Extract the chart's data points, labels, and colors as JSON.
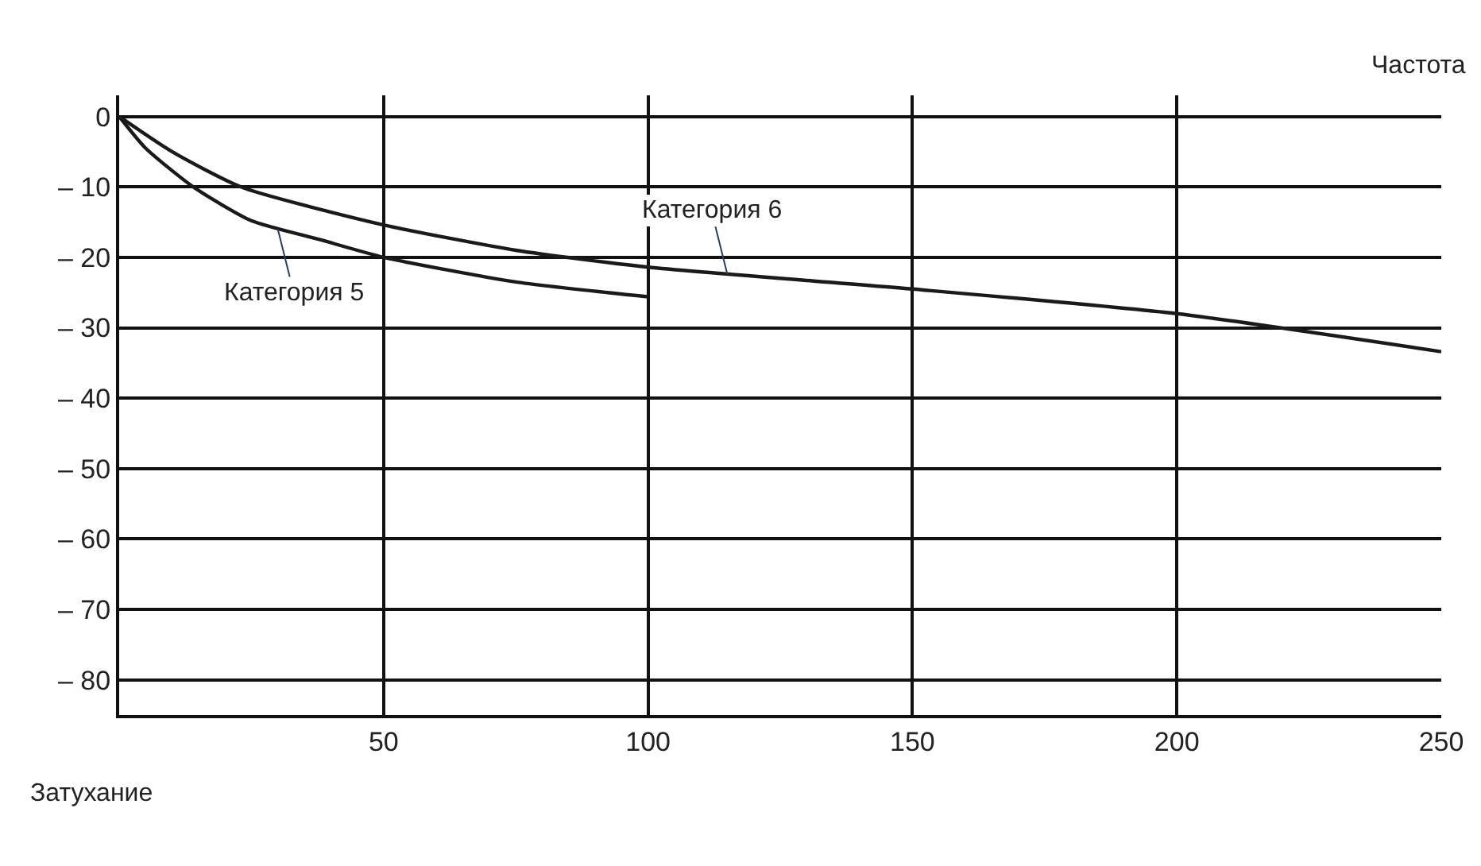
{
  "chart_data": {
    "type": "line",
    "xlabel": "Частота",
    "ylabel": "Затухание",
    "series": [
      {
        "color": "#1a1a1a",
        "x": [
          0,
          5,
          14,
          25,
          38,
          50,
          75,
          100
        ],
        "values": [
          0,
          -4.5,
          -10,
          -14.8,
          -17.5,
          -20,
          -23.5,
          -25.6
        ]
      },
      {
        "color": "#1a1a1a",
        "x": [
          0,
          10,
          23,
          50,
          75,
          100,
          150,
          200,
          250
        ],
        "values": [
          0,
          -5,
          -10,
          -15.4,
          -19,
          -21.4,
          -24.5,
          -28,
          -33.4
        ]
      }
    ],
    "xlim": [
      0,
      250
    ],
    "ylim": [
      -85,
      3
    ],
    "xticks": [
      50,
      100,
      150,
      200,
      250
    ],
    "yticks": [
      {
        "value": 0,
        "label": "0"
      },
      {
        "value": -10,
        "label": "– 10"
      },
      {
        "value": -20,
        "label": "– 20"
      },
      {
        "value": -30,
        "label": "– 30"
      },
      {
        "value": -40,
        "label": "– 40"
      },
      {
        "value": -50,
        "label": "– 50"
      },
      {
        "value": -60,
        "label": "– 60"
      },
      {
        "value": -70,
        "label": "– 70"
      },
      {
        "value": -80,
        "label": "– 80"
      }
    ],
    "grid": true,
    "marker": "none",
    "line_style": "solid",
    "annotations": [
      {
        "text": "Категория 5",
        "x": 30,
        "y": -16
      },
      {
        "text": "Категория 6",
        "x": 115,
        "y": -22.4
      }
    ]
  }
}
